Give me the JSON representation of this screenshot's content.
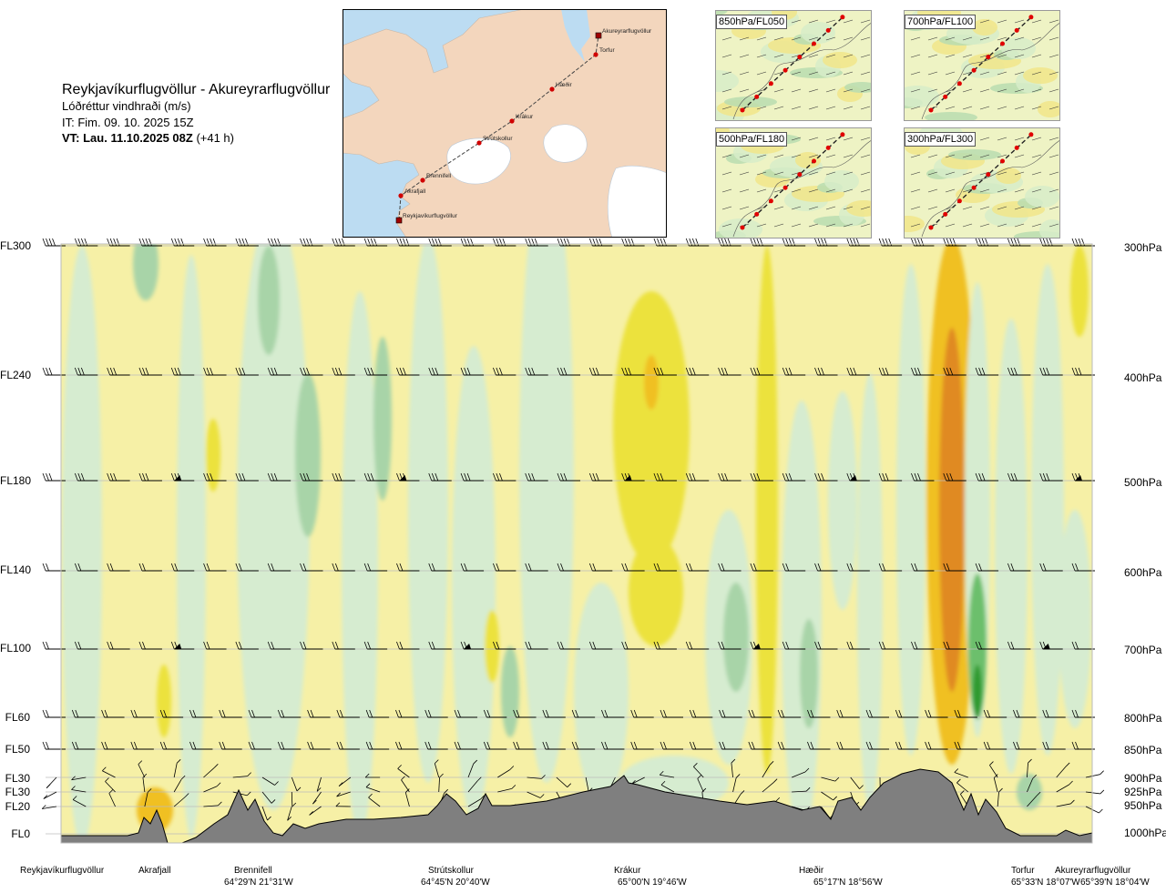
{
  "header": {
    "title": "Reykjavíkurflugvöllur - Akureyrarflugvöllur",
    "variable": "Lóðréttur vindhraði (m/s)",
    "issue_time": "IT: Fim. 09. 10. 2025 15Z",
    "valid_time": "VT: Lau. 11.10.2025 08Z",
    "lead": "(+41 h)"
  },
  "route_map": {
    "stops": [
      "Reykjavíkurflugvöllur",
      "Akrafjall",
      "Brennifell",
      "Strútskollur",
      "Krákur",
      "Hæðir",
      "Torfur",
      "Akureyrarflugvöllur"
    ],
    "colors": {
      "sea": "#bcdcf2",
      "land": "#f3d6bd",
      "glacier": "#ffffff",
      "route": "#444444",
      "point": "#d00000"
    }
  },
  "level_maps": [
    "850hPa/FL050",
    "700hPa/FL100",
    "500hPa/FL180",
    "300hPa/FL300"
  ],
  "chart_data": {
    "type": "heatmap",
    "title": "Lóðréttur vindhraði (m/s)",
    "left_axis_labels": [
      "FL300",
      "FL240",
      "FL180",
      "FL140",
      "FL100",
      "FL60",
      "FL50",
      "FL30",
      "FL30",
      "FL20",
      "FL0"
    ],
    "right_axis_labels": [
      "300hPa",
      "400hPa",
      "500hPa",
      "600hPa",
      "700hPa",
      "800hPa",
      "850hPa",
      "900hPa",
      "925hPa",
      "950hPa",
      "1000hPa"
    ],
    "pressure_levels_hPa": [
      300,
      400,
      500,
      600,
      700,
      800,
      850,
      900,
      925,
      950,
      1000
    ],
    "route_points": [
      {
        "name": "Reykjavíkurflugvöllur",
        "coord": ""
      },
      {
        "name": "Akrafjall",
        "coord": ""
      },
      {
        "name": "Brennifell",
        "coord": "64°29'N 21°31'W"
      },
      {
        "name": "Strútskollur",
        "coord": "64°45'N 20°40'W"
      },
      {
        "name": "Krákur",
        "coord": "65°00'N 19°46'W"
      },
      {
        "name": "Hæðir",
        "coord": "65°17'N 18°56'W"
      },
      {
        "name": "Torfur",
        "coord": "65°33'N 18°07'W"
      },
      {
        "name": "Akureyrarflugvöllur",
        "coord": "65°39'N 18°04'W"
      }
    ],
    "color_scale": {
      "strong_down": "#2e9a2e",
      "moderate_down": "#6cbf6c",
      "weak_down": "#a8d4a8",
      "very_weak_down": "#d6ecd0",
      "neutral": "#fbfbe6",
      "very_weak_up": "#f6f0a6",
      "weak_up": "#ece23e",
      "moderate_up": "#f0c020",
      "strong_up": "#e08a20",
      "terrain": "#7f7f7f"
    },
    "grid": true
  }
}
